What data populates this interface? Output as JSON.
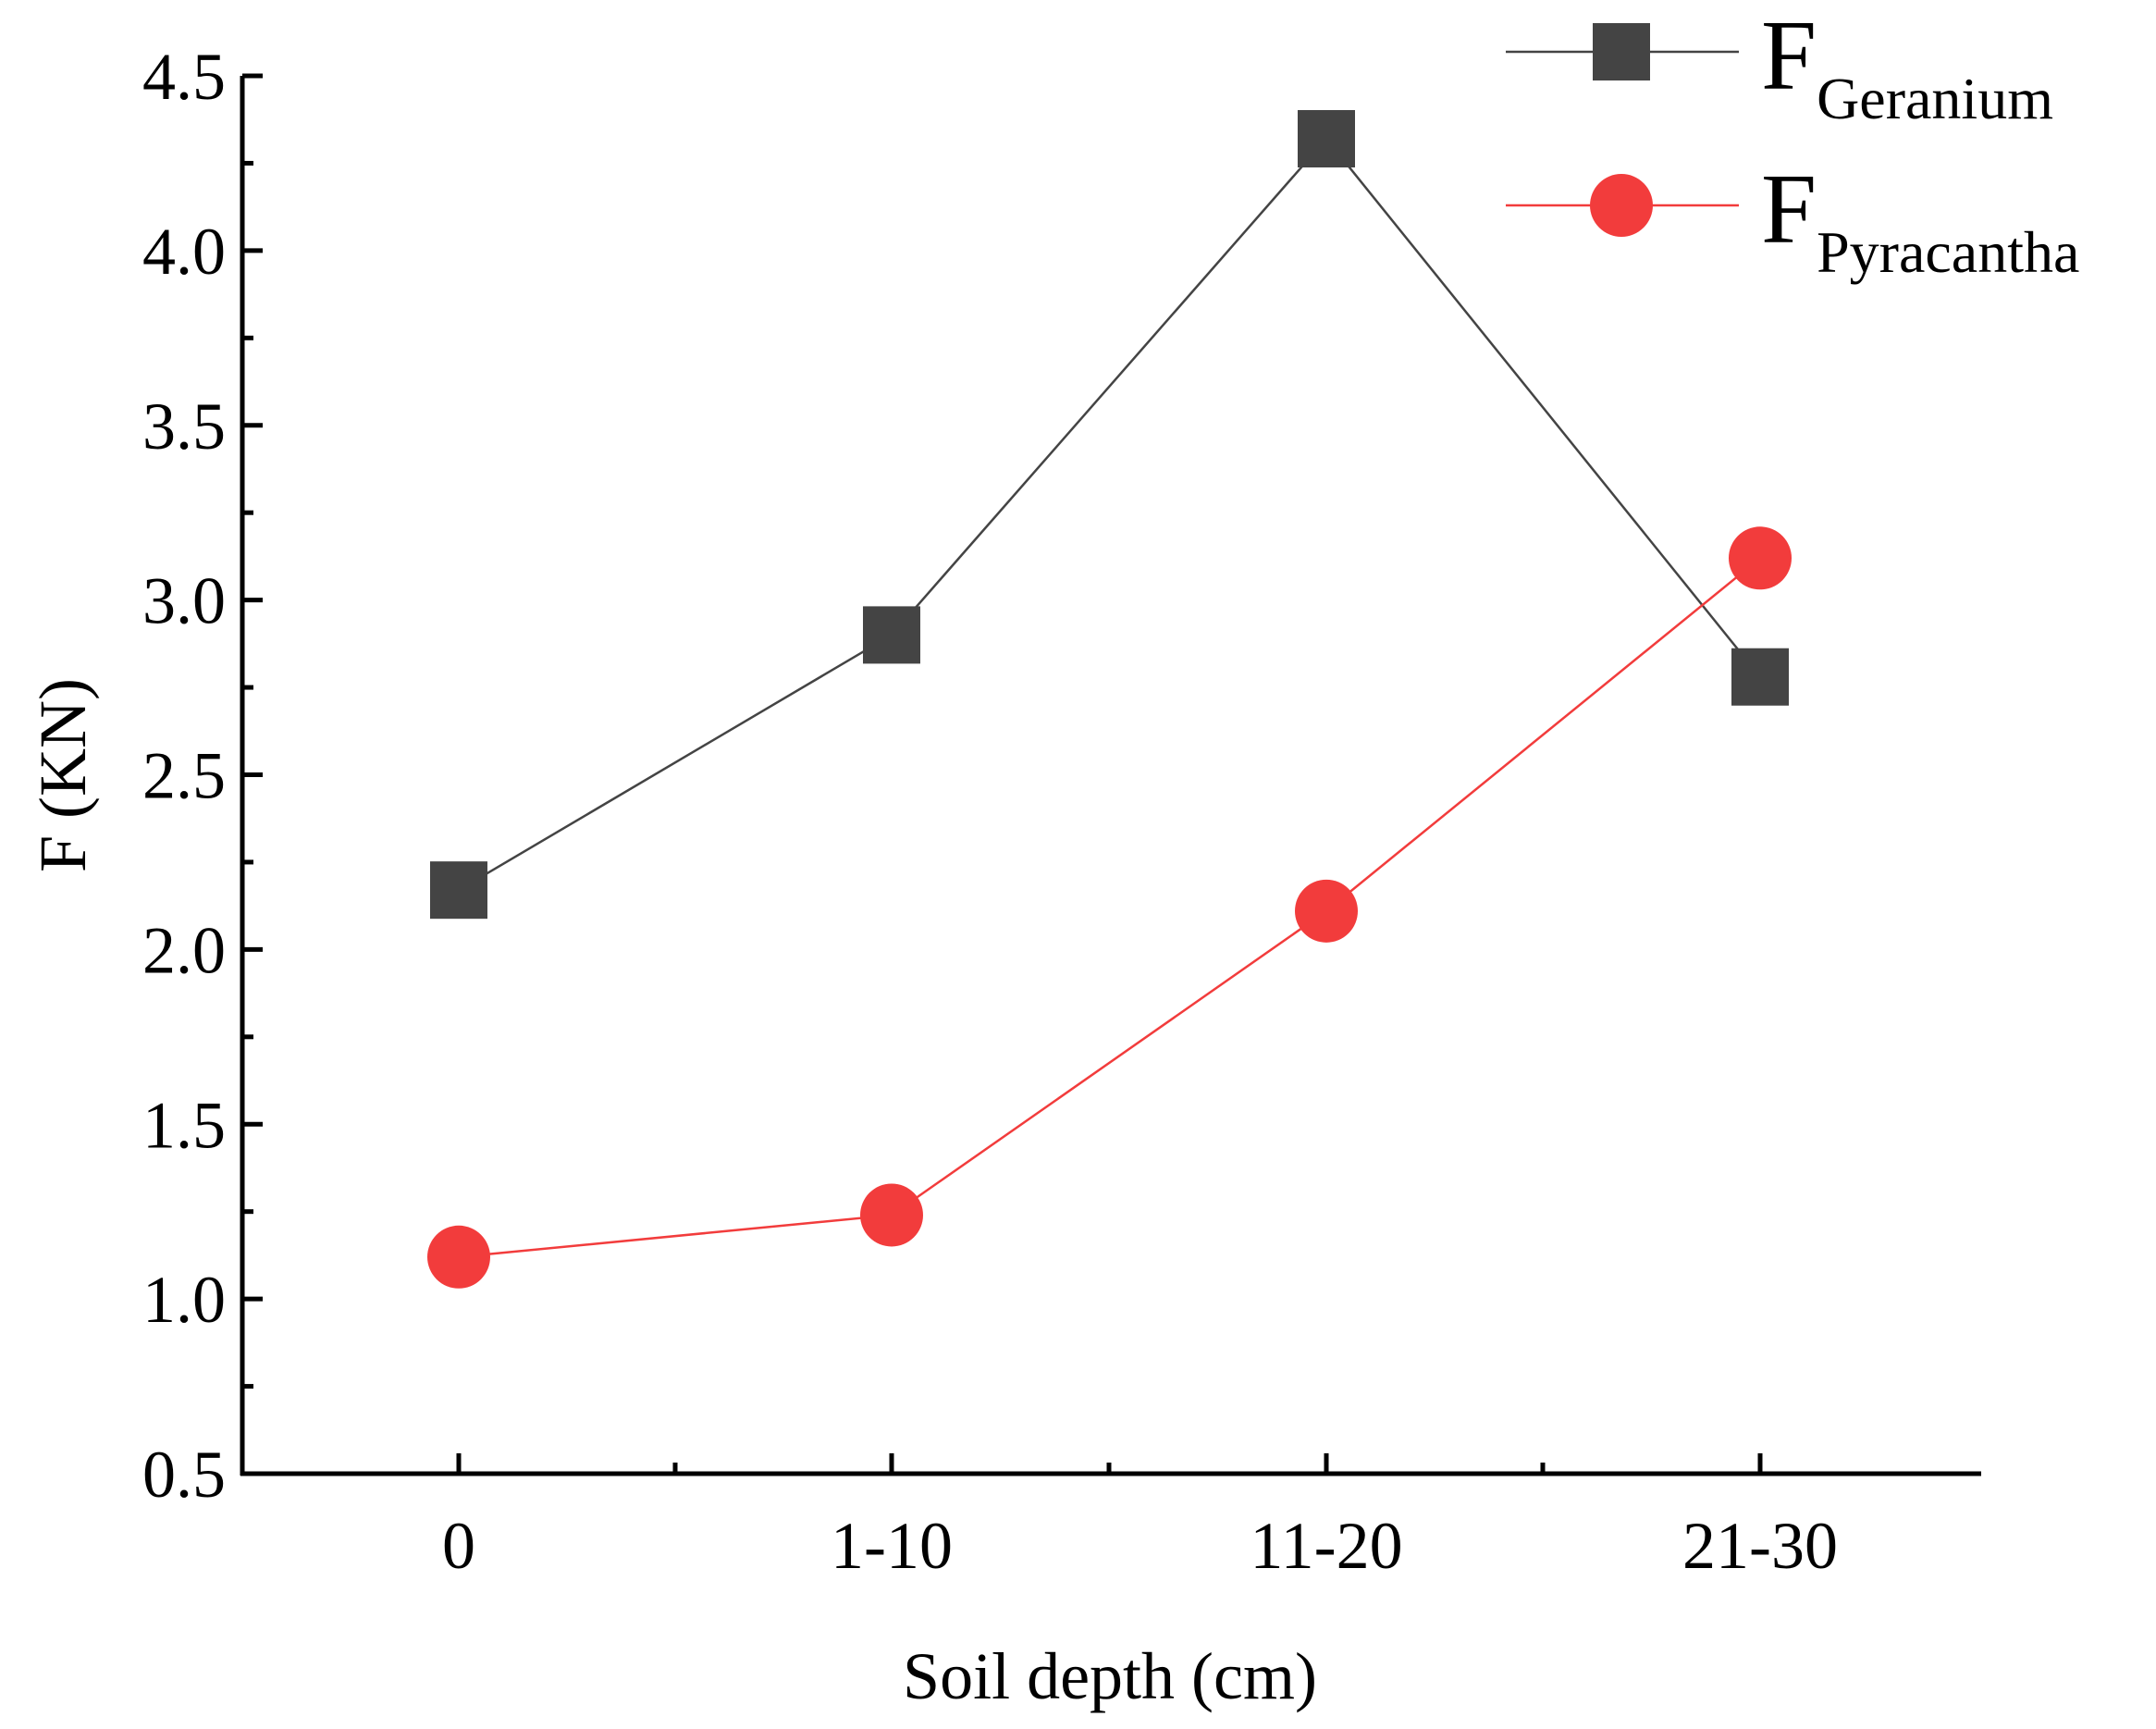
{
  "chart_data": {
    "type": "line",
    "title": "",
    "xlabel": "Soil depth (cm)",
    "ylabel": "F (KN)",
    "categories": [
      "0",
      "1-10",
      "11-20",
      "21-30"
    ],
    "ylim": [
      0.5,
      4.5
    ],
    "yticks": [
      "0.5",
      "1.0",
      "1.5",
      "2.0",
      "2.5",
      "3.0",
      "3.5",
      "4.0",
      "4.5"
    ],
    "ytick_values": [
      0.5,
      1.0,
      1.5,
      2.0,
      2.5,
      3.0,
      3.5,
      4.0,
      4.5
    ],
    "grid": false,
    "legend_position": "top-right",
    "series": [
      {
        "name": "F_Geranium",
        "label_main": "F",
        "label_sub": "Geranium",
        "marker": "square",
        "color": "#444444",
        "line_color": "#444444",
        "values": [
          2.17,
          2.9,
          4.32,
          2.78
        ]
      },
      {
        "name": "F_Pyracantha",
        "label_main": "F",
        "label_sub": "Pyracantha",
        "marker": "circle",
        "color": "#f23c3c",
        "line_color": "#f23c3c",
        "values": [
          1.12,
          1.24,
          2.11,
          3.12
        ]
      }
    ]
  }
}
